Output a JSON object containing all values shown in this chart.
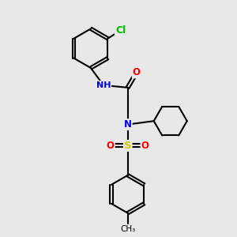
{
  "bg_color": "#e8e8e8",
  "bond_color": "#000000",
  "bond_width": 1.5,
  "atom_colors": {
    "N": "#0000ee",
    "O": "#ff0000",
    "S": "#cccc00",
    "Cl": "#00bb00",
    "H": "#888888"
  },
  "font_size": 8.5,
  "fig_size": [
    3.0,
    3.0
  ],
  "dpi": 100,
  "xlim": [
    0,
    10
  ],
  "ylim": [
    0,
    10
  ]
}
